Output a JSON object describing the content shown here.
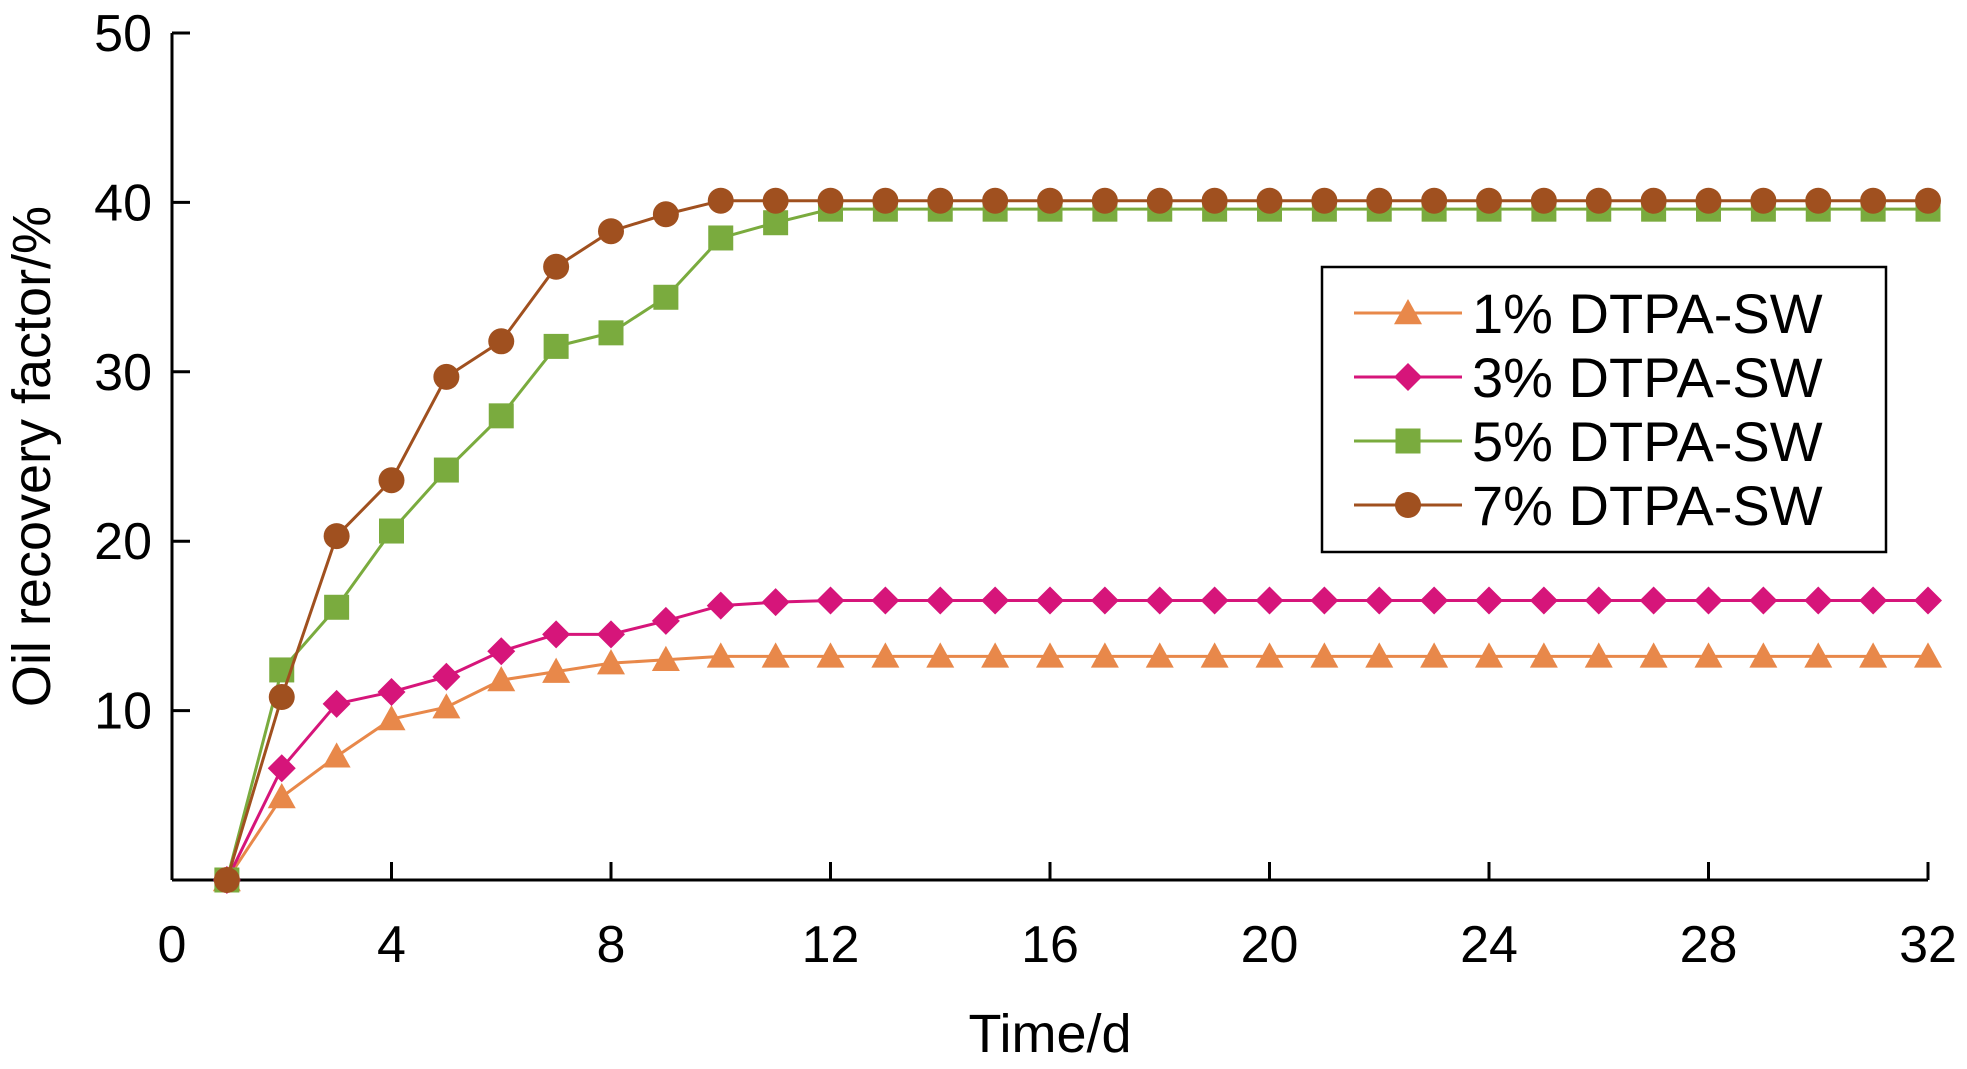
{
  "chart_data": {
    "type": "line",
    "title": "",
    "xlabel": "Time/d",
    "ylabel": "Oil recovery factor/%",
    "xlim": [
      0,
      32
    ],
    "ylim": [
      0,
      50
    ],
    "xticks": [
      "0",
      "4",
      "8",
      "12",
      "16",
      "20",
      "24",
      "28",
      "32"
    ],
    "yticks": [
      "10",
      "20",
      "30",
      "40",
      "50"
    ],
    "grid": false,
    "legend_position": "right",
    "x": [
      1,
      2,
      3,
      4,
      5,
      6,
      7,
      8,
      9,
      10,
      11,
      12,
      13,
      14,
      15,
      16,
      17,
      18,
      19,
      20,
      21,
      22,
      23,
      24,
      25,
      26,
      27,
      28,
      29,
      30,
      31,
      32
    ],
    "series": [
      {
        "name": "1% DTPA-SW",
        "color": "#e8884a",
        "marker": "triangle",
        "values": [
          0,
          4.9,
          7.3,
          9.5,
          10.2,
          11.8,
          12.3,
          12.8,
          13.0,
          13.2,
          13.2,
          13.2,
          13.2,
          13.2,
          13.2,
          13.2,
          13.2,
          13.2,
          13.2,
          13.2,
          13.2,
          13.2,
          13.2,
          13.2,
          13.2,
          13.2,
          13.2,
          13.2,
          13.2,
          13.2,
          13.2,
          13.2
        ]
      },
      {
        "name": "3% DTPA-SW",
        "color": "#d6157a",
        "marker": "diamond",
        "values": [
          0,
          6.6,
          10.4,
          11.1,
          12.0,
          13.5,
          14.5,
          14.5,
          15.3,
          16.2,
          16.4,
          16.5,
          16.5,
          16.5,
          16.5,
          16.5,
          16.5,
          16.5,
          16.5,
          16.5,
          16.5,
          16.5,
          16.5,
          16.5,
          16.5,
          16.5,
          16.5,
          16.5,
          16.5,
          16.5,
          16.5,
          16.5
        ]
      },
      {
        "name": "5% DTPA-SW",
        "color": "#7aab3e",
        "marker": "square",
        "values": [
          0,
          12.4,
          16.1,
          20.6,
          24.2,
          27.4,
          31.5,
          32.3,
          34.4,
          37.9,
          38.8,
          39.6,
          39.6,
          39.6,
          39.6,
          39.6,
          39.6,
          39.6,
          39.6,
          39.6,
          39.6,
          39.6,
          39.6,
          39.6,
          39.6,
          39.6,
          39.6,
          39.6,
          39.6,
          39.6,
          39.6,
          39.6
        ]
      },
      {
        "name": "7% DTPA-SW",
        "color": "#a0501f",
        "marker": "circle",
        "values": [
          0,
          10.8,
          20.3,
          23.6,
          29.7,
          31.8,
          36.2,
          38.3,
          39.3,
          40.1,
          40.1,
          40.1,
          40.1,
          40.1,
          40.1,
          40.1,
          40.1,
          40.1,
          40.1,
          40.1,
          40.1,
          40.1,
          40.1,
          40.1,
          40.1,
          40.1,
          40.1,
          40.1,
          40.1,
          40.1,
          40.1,
          40.1
        ]
      }
    ]
  }
}
